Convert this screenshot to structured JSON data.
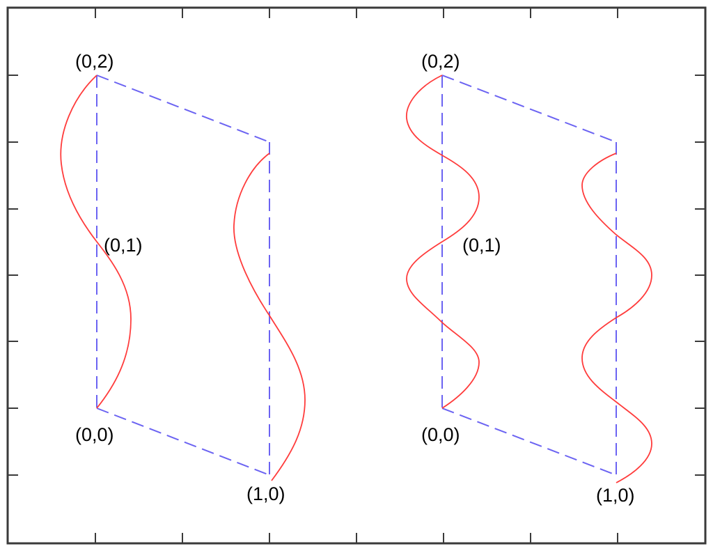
{
  "colors": {
    "frame": "#3a3a3a",
    "edges": "#6b63f2",
    "waves": "#ff3b3b",
    "text": "#000000",
    "background": "#ffffff"
  },
  "panels": [
    {
      "labels": {
        "p02": "(0,2)",
        "p01": "(0,1)",
        "p00": "(0,0)",
        "p10": "(1,0)"
      }
    },
    {
      "labels": {
        "p02": "(0,2)",
        "p01": "(0,1)",
        "p00": "(0,0)",
        "p10": "(1,0)"
      }
    }
  ]
}
